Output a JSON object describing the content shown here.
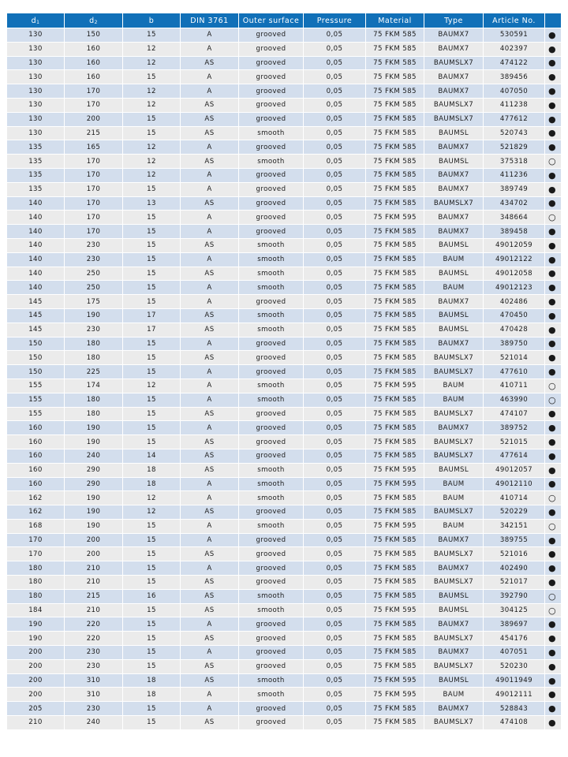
{
  "header": {
    "d1": "d",
    "d1_sub": "1",
    "d2": "d",
    "d2_sub": "2",
    "b": "b",
    "din": "DIN 3761",
    "outer_surface": "Outer surface",
    "pressure": "Pressure",
    "material": "Material",
    "type": "Type",
    "article": "Article No.",
    "availability": ""
  },
  "colors": {
    "header_bg": "#1170b8",
    "row_odd": "#d3deed",
    "row_even": "#ebebeb"
  },
  "legend_symbols": {
    "filled": "●",
    "hollow": "○"
  },
  "rows": [
    [
      "130",
      "150",
      "15",
      "A",
      "grooved",
      "0,05",
      "75 FKM 585",
      "BAUMX7",
      "530591",
      "●"
    ],
    [
      "130",
      "160",
      "12",
      "A",
      "grooved",
      "0,05",
      "75 FKM 585",
      "BAUMX7",
      "402397",
      "●"
    ],
    [
      "130",
      "160",
      "12",
      "AS",
      "grooved",
      "0,05",
      "75 FKM 585",
      "BAUMSLX7",
      "474122",
      "●"
    ],
    [
      "130",
      "160",
      "15",
      "A",
      "grooved",
      "0,05",
      "75 FKM 585",
      "BAUMX7",
      "389456",
      "●"
    ],
    [
      "130",
      "170",
      "12",
      "A",
      "grooved",
      "0,05",
      "75 FKM 585",
      "BAUMX7",
      "407050",
      "●"
    ],
    [
      "130",
      "170",
      "12",
      "AS",
      "grooved",
      "0,05",
      "75 FKM 585",
      "BAUMSLX7",
      "411238",
      "●"
    ],
    [
      "130",
      "200",
      "15",
      "AS",
      "grooved",
      "0,05",
      "75 FKM 585",
      "BAUMSLX7",
      "477612",
      "●"
    ],
    [
      "130",
      "215",
      "15",
      "AS",
      "smooth",
      "0,05",
      "75 FKM 585",
      "BAUMSL",
      "520743",
      "●"
    ],
    [
      "135",
      "165",
      "12",
      "A",
      "grooved",
      "0,05",
      "75 FKM 585",
      "BAUMX7",
      "521829",
      "●"
    ],
    [
      "135",
      "170",
      "12",
      "AS",
      "smooth",
      "0,05",
      "75 FKM 585",
      "BAUMSL",
      "375318",
      "○"
    ],
    [
      "135",
      "170",
      "12",
      "A",
      "grooved",
      "0,05",
      "75 FKM 585",
      "BAUMX7",
      "411236",
      "●"
    ],
    [
      "135",
      "170",
      "15",
      "A",
      "grooved",
      "0,05",
      "75 FKM 585",
      "BAUMX7",
      "389749",
      "●"
    ],
    [
      "140",
      "170",
      "13",
      "AS",
      "grooved",
      "0,05",
      "75 FKM 585",
      "BAUMSLX7",
      "434702",
      "●"
    ],
    [
      "140",
      "170",
      "15",
      "A",
      "grooved",
      "0,05",
      "75 FKM 595",
      "BAUMX7",
      "348664",
      "○"
    ],
    [
      "140",
      "170",
      "15",
      "A",
      "grooved",
      "0,05",
      "75 FKM 585",
      "BAUMX7",
      "389458",
      "●"
    ],
    [
      "140",
      "230",
      "15",
      "AS",
      "smooth",
      "0,05",
      "75 FKM 585",
      "BAUMSL",
      "49012059",
      "●"
    ],
    [
      "140",
      "230",
      "15",
      "A",
      "smooth",
      "0,05",
      "75 FKM 585",
      "BAUM",
      "49012122",
      "●"
    ],
    [
      "140",
      "250",
      "15",
      "AS",
      "smooth",
      "0,05",
      "75 FKM 585",
      "BAUMSL",
      "49012058",
      "●"
    ],
    [
      "140",
      "250",
      "15",
      "A",
      "smooth",
      "0,05",
      "75 FKM 585",
      "BAUM",
      "49012123",
      "●"
    ],
    [
      "145",
      "175",
      "15",
      "A",
      "grooved",
      "0,05",
      "75 FKM 585",
      "BAUMX7",
      "402486",
      "●"
    ],
    [
      "145",
      "190",
      "17",
      "AS",
      "smooth",
      "0,05",
      "75 FKM 585",
      "BAUMSL",
      "470450",
      "●"
    ],
    [
      "145",
      "230",
      "17",
      "AS",
      "smooth",
      "0,05",
      "75 FKM 585",
      "BAUMSL",
      "470428",
      "●"
    ],
    [
      "150",
      "180",
      "15",
      "A",
      "grooved",
      "0,05",
      "75 FKM 585",
      "BAUMX7",
      "389750",
      "●"
    ],
    [
      "150",
      "180",
      "15",
      "AS",
      "grooved",
      "0,05",
      "75 FKM 585",
      "BAUMSLX7",
      "521014",
      "●"
    ],
    [
      "150",
      "225",
      "15",
      "A",
      "grooved",
      "0,05",
      "75 FKM 585",
      "BAUMSLX7",
      "477610",
      "●"
    ],
    [
      "155",
      "174",
      "12",
      "A",
      "smooth",
      "0,05",
      "75 FKM 595",
      "BAUM",
      "410711",
      "○"
    ],
    [
      "155",
      "180",
      "15",
      "A",
      "smooth",
      "0,05",
      "75 FKM 585",
      "BAUM",
      "463990",
      "○"
    ],
    [
      "155",
      "180",
      "15",
      "AS",
      "grooved",
      "0,05",
      "75 FKM 585",
      "BAUMSLX7",
      "474107",
      "●"
    ],
    [
      "160",
      "190",
      "15",
      "A",
      "grooved",
      "0,05",
      "75 FKM 585",
      "BAUMX7",
      "389752",
      "●"
    ],
    [
      "160",
      "190",
      "15",
      "AS",
      "grooved",
      "0,05",
      "75 FKM 585",
      "BAUMSLX7",
      "521015",
      "●"
    ],
    [
      "160",
      "240",
      "14",
      "AS",
      "grooved",
      "0,05",
      "75 FKM 585",
      "BAUMSLX7",
      "477614",
      "●"
    ],
    [
      "160",
      "290",
      "18",
      "AS",
      "smooth",
      "0,05",
      "75 FKM 595",
      "BAUMSL",
      "49012057",
      "●"
    ],
    [
      "160",
      "290",
      "18",
      "A",
      "smooth",
      "0,05",
      "75 FKM 595",
      "BAUM",
      "49012110",
      "●"
    ],
    [
      "162",
      "190",
      "12",
      "A",
      "smooth",
      "0,05",
      "75 FKM 585",
      "BAUM",
      "410714",
      "○"
    ],
    [
      "162",
      "190",
      "12",
      "AS",
      "grooved",
      "0,05",
      "75 FKM 585",
      "BAUMSLX7",
      "520229",
      "●"
    ],
    [
      "168",
      "190",
      "15",
      "A",
      "smooth",
      "0,05",
      "75 FKM 595",
      "BAUM",
      "342151",
      "○"
    ],
    [
      "170",
      "200",
      "15",
      "A",
      "grooved",
      "0,05",
      "75 FKM 585",
      "BAUMX7",
      "389755",
      "●"
    ],
    [
      "170",
      "200",
      "15",
      "AS",
      "grooved",
      "0,05",
      "75 FKM 585",
      "BAUMSLX7",
      "521016",
      "●"
    ],
    [
      "180",
      "210",
      "15",
      "A",
      "grooved",
      "0,05",
      "75 FKM 585",
      "BAUMX7",
      "402490",
      "●"
    ],
    [
      "180",
      "210",
      "15",
      "AS",
      "grooved",
      "0,05",
      "75 FKM 585",
      "BAUMSLX7",
      "521017",
      "●"
    ],
    [
      "180",
      "215",
      "16",
      "AS",
      "smooth",
      "0,05",
      "75 FKM 585",
      "BAUMSL",
      "392790",
      "○"
    ],
    [
      "184",
      "210",
      "15",
      "AS",
      "smooth",
      "0,05",
      "75 FKM 595",
      "BAUMSL",
      "304125",
      "○"
    ],
    [
      "190",
      "220",
      "15",
      "A",
      "grooved",
      "0,05",
      "75 FKM 585",
      "BAUMX7",
      "389697",
      "●"
    ],
    [
      "190",
      "220",
      "15",
      "AS",
      "grooved",
      "0,05",
      "75 FKM 585",
      "BAUMSLX7",
      "454176",
      "●"
    ],
    [
      "200",
      "230",
      "15",
      "A",
      "grooved",
      "0,05",
      "75 FKM 585",
      "BAUMX7",
      "407051",
      "●"
    ],
    [
      "200",
      "230",
      "15",
      "AS",
      "grooved",
      "0,05",
      "75 FKM 585",
      "BAUMSLX7",
      "520230",
      "●"
    ],
    [
      "200",
      "310",
      "18",
      "AS",
      "smooth",
      "0,05",
      "75 FKM 595",
      "BAUMSL",
      "49011949",
      "●"
    ],
    [
      "200",
      "310",
      "18",
      "A",
      "smooth",
      "0,05",
      "75 FKM 595",
      "BAUM",
      "49012111",
      "●"
    ],
    [
      "205",
      "230",
      "15",
      "A",
      "grooved",
      "0,05",
      "75 FKM 585",
      "BAUMX7",
      "528843",
      "●"
    ],
    [
      "210",
      "240",
      "15",
      "AS",
      "grooved",
      "0,05",
      "75 FKM 585",
      "BAUMSLX7",
      "474108",
      "●"
    ]
  ]
}
